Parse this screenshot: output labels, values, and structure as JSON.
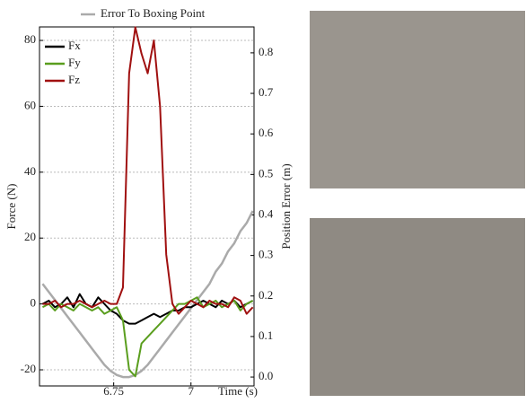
{
  "chart_data": {
    "type": "line",
    "xlabel": "Time (s)",
    "ylabel": "Force (N)",
    "y2label": "Position Error (m)",
    "x": [
      6.52,
      6.54,
      6.56,
      6.58,
      6.6,
      6.62,
      6.64,
      6.66,
      6.68,
      6.7,
      6.72,
      6.74,
      6.76,
      6.78,
      6.8,
      6.82,
      6.84,
      6.86,
      6.88,
      6.9,
      6.92,
      6.94,
      6.96,
      6.98,
      7.0,
      7.02,
      7.04,
      7.06,
      7.08,
      7.1,
      7.12,
      7.14,
      7.16,
      7.18,
      7.2
    ],
    "series": [
      {
        "name": "Error To Boxing Point",
        "color": "#aaaaaa",
        "axis": "y2",
        "values": [
          0.23,
          0.21,
          0.19,
          0.17,
          0.15,
          0.13,
          0.11,
          0.09,
          0.07,
          0.05,
          0.03,
          0.015,
          0.005,
          0,
          0,
          0.005,
          0.015,
          0.03,
          0.05,
          0.07,
          0.09,
          0.11,
          0.13,
          0.15,
          0.17,
          0.19,
          0.21,
          0.23,
          0.26,
          0.28,
          0.31,
          0.33,
          0.36,
          0.38,
          0.41
        ]
      },
      {
        "name": "Fx",
        "color": "#000000",
        "values": [
          0,
          1,
          -1,
          0,
          2,
          -1,
          3,
          0,
          -1,
          2,
          0,
          -2,
          -3,
          -5,
          -6,
          -6,
          -5,
          -4,
          -3,
          -4,
          -3,
          -2,
          -2,
          -1,
          -1,
          0,
          1,
          0,
          -1,
          1,
          0,
          1,
          -1,
          0,
          1
        ]
      },
      {
        "name": "Fy",
        "color": "#5a9e1e",
        "values": [
          -1,
          0,
          -2,
          0,
          -1,
          -2,
          0,
          -1,
          -2,
          -1,
          -3,
          -2,
          -1,
          -5,
          -20,
          -22,
          -12,
          -10,
          -8,
          -6,
          -4,
          -2,
          0,
          0,
          1,
          2,
          -1,
          0,
          1,
          -1,
          0,
          1,
          -2,
          0,
          1
        ]
      },
      {
        "name": "Fz",
        "color": "#a01010",
        "values": [
          0,
          0,
          1,
          -1,
          0,
          0,
          1,
          0,
          -1,
          0,
          1,
          0,
          0,
          5,
          70,
          84,
          76,
          70,
          80,
          60,
          15,
          0,
          -3,
          -1,
          1,
          0,
          -1,
          1,
          0,
          0,
          -1,
          2,
          1,
          -3,
          -1
        ]
      }
    ],
    "xlim": [
      6.51,
      7.204
    ],
    "xticks": [
      6.75,
      7
    ],
    "ylim": [
      -24.9,
      84.1
    ],
    "yticks": [
      -20,
      0,
      20,
      40,
      60,
      80
    ],
    "y2lim": [
      -0.022,
      0.864
    ],
    "y2ticks": [
      {
        "value": 0,
        "label": "0.0"
      },
      0.1,
      0.2,
      0.3,
      0.4,
      0.5,
      0.6,
      0.7,
      0.8
    ],
    "grid": true
  }
}
